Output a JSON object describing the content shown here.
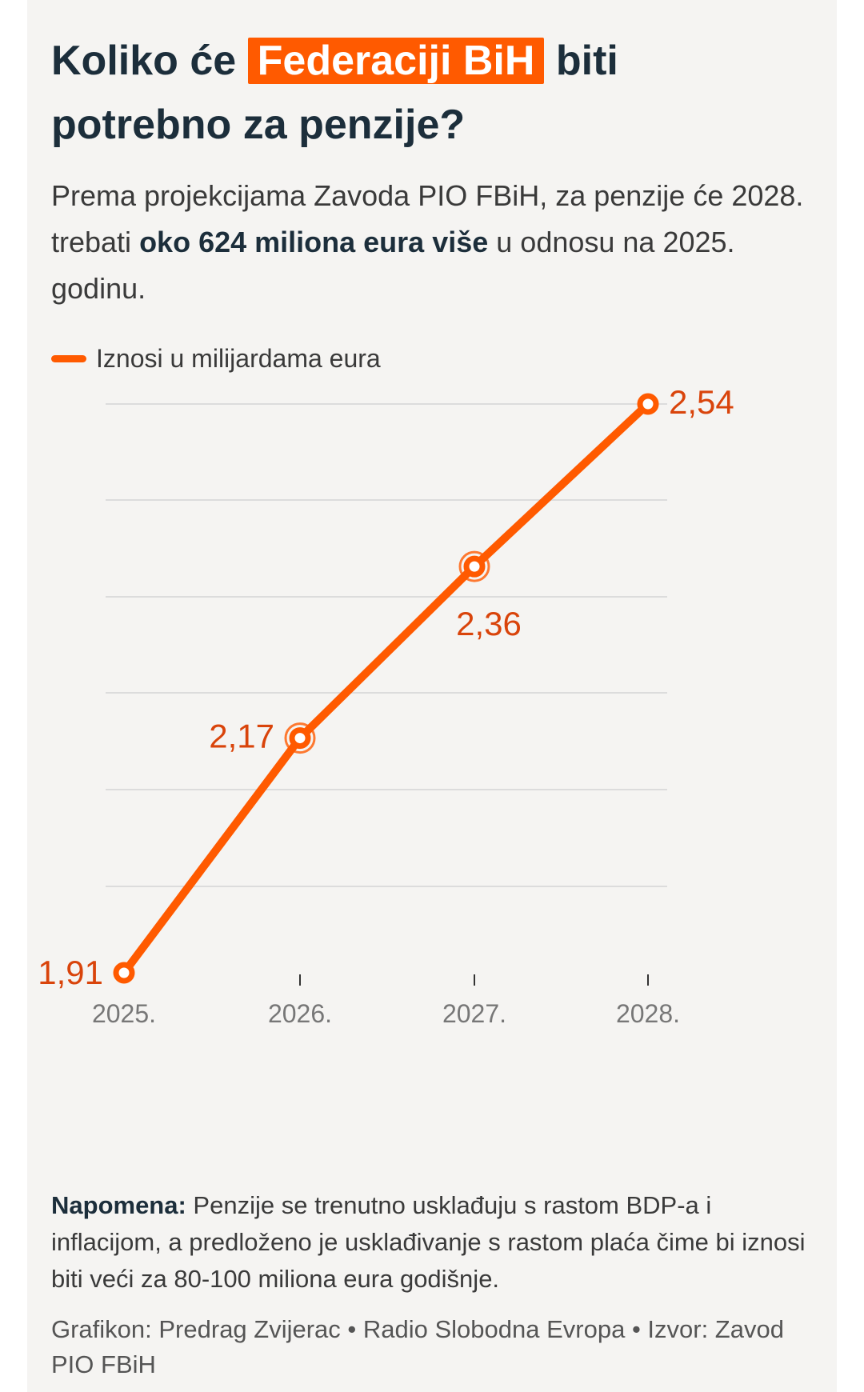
{
  "header": {
    "title_pre": "Koliko će ",
    "title_highlight": "Federaciji BiH",
    "title_post": " biti potrebno za penzije?",
    "subtitle_pre": "Prema projekcijama Zavoda PIO FBiH, za penzije će 2028. trebati ",
    "subtitle_bold": "oko 624 miliona eura više",
    "subtitle_post": " u odnosu na 2025. godinu."
  },
  "legend": {
    "label": "Iznosi u milijardama eura"
  },
  "chart_data": {
    "type": "line",
    "categories": [
      "2025.",
      "2026.",
      "2027.",
      "2028."
    ],
    "series": [
      {
        "name": "Iznosi u milijardama eura",
        "values": [
          1.91,
          2.17,
          2.36,
          2.54
        ]
      }
    ],
    "data_labels": [
      "1,91",
      "2,17",
      "2,36",
      "2,54"
    ],
    "ylim": [
      1.91,
      2.54
    ],
    "grid": true,
    "legend_position": "top-left",
    "colors": {
      "line": "#ff5a00",
      "label": "#d9440b",
      "grid": "#dcdcdc",
      "tick": "#777777"
    }
  },
  "footer": {
    "note_label": "Napomena:",
    "note_text": " Penzije se trenutno usklađuju s rastom BDP-a i inflacijom, a predloženo je usklađivanje s rastom plaća čime bi iznosi biti veći za 80-100 miliona eura godišnje.",
    "credit": "Grafikon: Predrag Zvijerac • Radio Slobodna Evropa • Izvor: Zavod PIO FBiH"
  }
}
